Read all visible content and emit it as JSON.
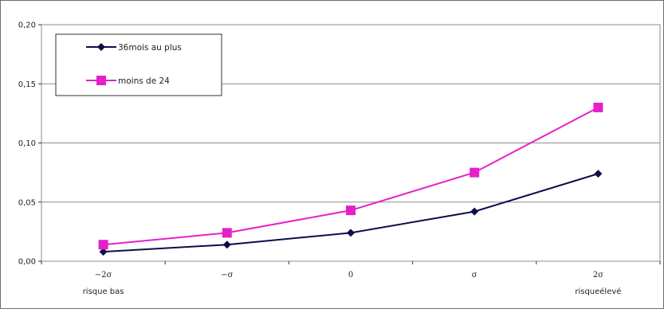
{
  "chart_data": {
    "type": "line",
    "title": "",
    "xlabel": "",
    "ylabel": "",
    "categories": [
      "−2σ",
      "−σ",
      "0",
      "σ",
      "2σ"
    ],
    "y_ticks": [
      "0,00",
      "0,05",
      "0,10",
      "0,15",
      "0,20"
    ],
    "ylim": [
      0,
      0.2
    ],
    "grid": "horizontal",
    "legend_position": "top-left",
    "annotations": [
      {
        "text": "risque bas",
        "category_index": 0
      },
      {
        "text": "risqueélevé",
        "category_index": 4
      }
    ],
    "series": [
      {
        "name": "36mois au plus",
        "color": "#0d0d4a",
        "marker": "diamond",
        "values": [
          0.008,
          0.014,
          0.024,
          0.042,
          0.074
        ]
      },
      {
        "name": "moins de 24",
        "color": "#e620c8",
        "marker": "square",
        "values": [
          0.014,
          0.024,
          0.043,
          0.075,
          0.13
        ]
      }
    ]
  }
}
